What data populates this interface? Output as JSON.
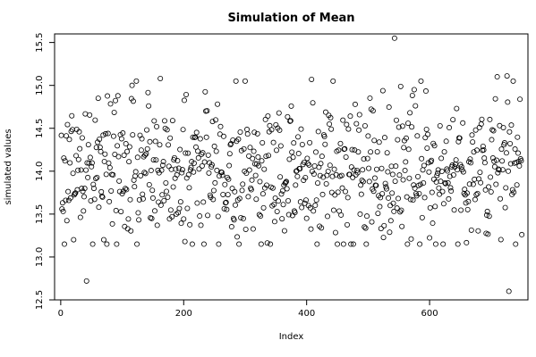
{
  "chart_data": {
    "type": "scatter",
    "title": "Simulation of Mean",
    "xlabel": "Index",
    "ylabel": "simulated values",
    "xlim": [
      -10,
      760
    ],
    "ylim": [
      12.5,
      15.6
    ],
    "x_ticks": [
      0,
      200,
      400,
      600
    ],
    "y_ticks": [
      12.5,
      13.0,
      13.5,
      14.0,
      14.5,
      15.0,
      15.5
    ],
    "x_tick_labels": [
      "0",
      "200",
      "400",
      "600"
    ],
    "y_tick_labels": [
      "12.5",
      "13.0",
      "13.5",
      "14.0",
      "14.5",
      "15.0",
      "15.5"
    ],
    "grid": false,
    "point_style": "open-circle",
    "n_points": 750,
    "series_mean": 14.0,
    "series_sd": 0.45,
    "series_min": 12.6,
    "series_max": 15.55,
    "notable_points": [
      {
        "x": 42,
        "y": 12.72
      },
      {
        "x": 61,
        "y": 14.85
      },
      {
        "x": 116,
        "y": 15.0
      },
      {
        "x": 162,
        "y": 15.08
      },
      {
        "x": 408,
        "y": 15.07
      },
      {
        "x": 543,
        "y": 15.55
      },
      {
        "x": 575,
        "y": 14.95
      },
      {
        "x": 710,
        "y": 15.1
      },
      {
        "x": 726,
        "y": 15.11
      },
      {
        "x": 729,
        "y": 12.6
      }
    ]
  }
}
